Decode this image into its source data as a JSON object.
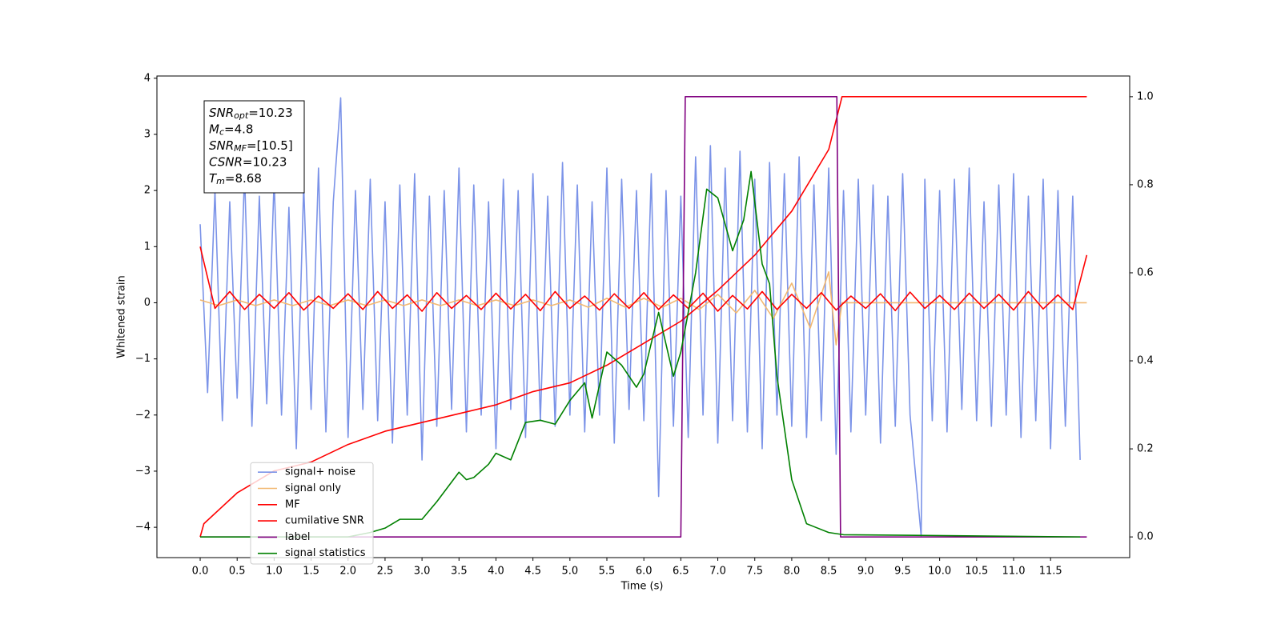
{
  "chart_data": {
    "type": "line",
    "xlabel": "Time (s)",
    "ylabel": "Whitened strain",
    "xlim": [
      -0.585,
      12.57
    ],
    "ylim": [
      -4.54,
      4.04
    ],
    "y2lim": [
      -0.047,
      1.047
    ],
    "xticks": [
      {
        "value": 0,
        "label": "0.0"
      },
      0.5,
      {
        "value": 1,
        "label": "1.0"
      },
      1.5,
      {
        "value": 2,
        "label": "2.0"
      },
      2.5,
      {
        "value": 3,
        "label": "3.0"
      },
      3.5,
      {
        "value": 4,
        "label": "4.0"
      },
      4.5,
      {
        "value": 5,
        "label": "5.0"
      },
      5.5,
      {
        "value": 6,
        "label": "6.0"
      },
      6.5,
      {
        "value": 7,
        "label": "7.0"
      },
      7.5,
      {
        "value": 8,
        "label": "8.0"
      },
      8.5,
      {
        "value": 9,
        "label": "9.0"
      },
      9.5,
      {
        "value": 10,
        "label": "10.0"
      },
      10.5,
      {
        "value": 11,
        "label": "11.0"
      },
      11.5
    ],
    "yticks": [
      {
        "value": -4,
        "label": "−4"
      },
      {
        "value": -3,
        "label": "−3"
      },
      {
        "value": -2,
        "label": "−2"
      },
      {
        "value": -1,
        "label": "−1"
      },
      0,
      1,
      2,
      3,
      4
    ],
    "y2ticks": [
      {
        "value": 0,
        "label": "0.0"
      },
      0.2,
      0.4,
      0.6,
      0.8,
      {
        "value": 1,
        "label": "1.0"
      }
    ],
    "legend": "lower left",
    "annotation": [
      [
        "SNR",
        "opt",
        "=10.23"
      ],
      [
        "M",
        "c",
        "=4.8"
      ],
      [
        "SNR",
        "MF",
        "=[10.5]"
      ],
      [
        "CSNR",
        "=10.23"
      ],
      [
        "T",
        "m",
        "=8.68"
      ]
    ],
    "series": [
      {
        "name": "signal+ noise",
        "color": "#7b93e8",
        "axis": "y",
        "x": [
          0,
          0.1,
          0.2,
          0.3,
          0.4,
          0.5,
          0.6,
          0.7,
          0.8,
          0.9,
          1,
          1.1,
          1.2,
          1.3,
          1.4,
          1.5,
          1.6,
          1.7,
          1.8,
          1.9,
          2,
          2.1,
          2.2,
          2.3,
          2.4,
          2.5,
          2.6,
          2.7,
          2.8,
          2.9,
          3,
          3.1,
          3.2,
          3.3,
          3.4,
          3.5,
          3.6,
          3.7,
          3.8,
          3.9,
          4,
          4.1,
          4.2,
          4.3,
          4.4,
          4.5,
          4.6,
          4.7,
          4.8,
          4.9,
          5,
          5.1,
          5.2,
          5.3,
          5.4,
          5.5,
          5.6,
          5.7,
          5.8,
          5.9,
          6,
          6.1,
          6.2,
          6.3,
          6.4,
          6.5,
          6.6,
          6.7,
          6.8,
          6.9,
          7,
          7.1,
          7.2,
          7.3,
          7.4,
          7.5,
          7.6,
          7.7,
          7.8,
          7.9,
          8,
          8.1,
          8.2,
          8.3,
          8.4,
          8.5,
          8.6,
          8.7,
          8.8,
          8.9,
          9,
          9.1,
          9.2,
          9.3,
          9.4,
          9.5,
          9.6,
          9.75,
          9.8,
          9.9,
          10,
          10.1,
          10.2,
          10.3,
          10.4,
          10.5,
          10.6,
          10.7,
          10.8,
          10.9,
          11,
          11.1,
          11.2,
          11.3,
          11.4,
          11.5,
          11.6,
          11.7,
          11.8,
          11.9
        ],
        "values": [
          1.4,
          -1.6,
          2.0,
          -2.1,
          1.8,
          -1.7,
          2.3,
          -2.2,
          1.9,
          -1.8,
          2.2,
          -2.0,
          1.7,
          -2.6,
          2.1,
          -1.9,
          2.4,
          -2.3,
          1.8,
          3.65,
          -2.4,
          2.0,
          -1.9,
          2.2,
          -2.1,
          1.8,
          -2.5,
          2.1,
          -2.0,
          2.3,
          -2.8,
          1.9,
          -2.2,
          2.0,
          -1.9,
          2.4,
          -2.3,
          2.1,
          -2.0,
          1.8,
          -2.6,
          2.2,
          -1.9,
          2.0,
          -2.4,
          2.3,
          -2.1,
          1.9,
          -2.2,
          2.5,
          -2.0,
          2.1,
          -2.3,
          1.8,
          -2.0,
          2.4,
          -2.5,
          2.2,
          -1.9,
          2.0,
          -2.1,
          2.3,
          -3.45,
          2.0,
          -2.2,
          1.9,
          -2.4,
          2.6,
          -2.0,
          2.8,
          -2.5,
          2.4,
          -2.1,
          2.7,
          -2.3,
          2.2,
          -2.6,
          2.5,
          -2.0,
          2.3,
          -2.2,
          2.6,
          -2.4,
          2.1,
          -2.1,
          2.4,
          -2.7,
          2.0,
          -2.3,
          2.2,
          -2.0,
          2.1,
          -2.5,
          1.9,
          -2.2,
          2.3,
          -2.0,
          -4.15,
          2.2,
          -2.1,
          2.0,
          -2.3,
          2.2,
          -1.9,
          2.4,
          -2.1,
          1.8,
          -2.2,
          2.1,
          -2.0,
          2.3,
          -2.4,
          1.9,
          -2.1,
          2.2,
          -2.6,
          2.0,
          -2.2,
          1.9,
          -2.8
        ]
      },
      {
        "name": "signal only",
        "color": "#f2b872",
        "axis": "y",
        "x": [
          0,
          0.25,
          0.5,
          0.75,
          1,
          1.25,
          1.5,
          1.75,
          2,
          2.25,
          2.5,
          2.75,
          3,
          3.25,
          3.5,
          3.75,
          4,
          4.25,
          4.5,
          4.75,
          5,
          5.25,
          5.5,
          5.75,
          6,
          6.25,
          6.5,
          6.75,
          7,
          7.25,
          7.5,
          7.75,
          8,
          8.25,
          8.5,
          8.6,
          8.68,
          11.99
        ],
        "values": [
          0.05,
          -0.05,
          0.05,
          -0.05,
          0.05,
          -0.05,
          0.05,
          -0.05,
          0.05,
          -0.05,
          0.05,
          -0.05,
          0.05,
          -0.05,
          0.05,
          -0.05,
          0.05,
          -0.05,
          0.05,
          -0.05,
          0.05,
          -0.08,
          0.08,
          -0.08,
          0.08,
          -0.08,
          0.08,
          -0.12,
          0.15,
          -0.18,
          0.22,
          -0.28,
          0.35,
          -0.45,
          0.55,
          -0.75,
          0,
          0
        ]
      },
      {
        "name": "MF",
        "color": "#ff0000",
        "axis": "y",
        "x": [
          0,
          0.2,
          0.4,
          0.6,
          0.8,
          1,
          1.2,
          1.4,
          1.6,
          1.8,
          2,
          2.2,
          2.4,
          2.6,
          2.8,
          3,
          3.2,
          3.4,
          3.6,
          3.8,
          4,
          4.2,
          4.4,
          4.6,
          4.8,
          5,
          5.2,
          5.4,
          5.6,
          5.8,
          6,
          6.2,
          6.4,
          6.6,
          6.8,
          7,
          7.2,
          7.4,
          7.6,
          7.8,
          8,
          8.2,
          8.4,
          8.6,
          8.8,
          9,
          9.2,
          9.4,
          9.6,
          9.8,
          10,
          10.2,
          10.4,
          10.6,
          10.8,
          11,
          11.2,
          11.4,
          11.6,
          11.8,
          11.99
        ],
        "values": [
          1.0,
          -0.1,
          0.2,
          -0.12,
          0.15,
          -0.1,
          0.18,
          -0.13,
          0.12,
          -0.1,
          0.16,
          -0.12,
          0.2,
          -0.1,
          0.14,
          -0.15,
          0.18,
          -0.1,
          0.13,
          -0.12,
          0.17,
          -0.11,
          0.15,
          -0.14,
          0.2,
          -0.1,
          0.12,
          -0.13,
          0.16,
          -0.1,
          0.18,
          -0.12,
          0.14,
          -0.1,
          0.17,
          -0.15,
          0.13,
          -0.11,
          0.2,
          -0.12,
          0.15,
          -0.1,
          0.18,
          -0.13,
          0.12,
          -0.1,
          0.16,
          -0.14,
          0.19,
          -0.1,
          0.13,
          -0.12,
          0.17,
          -0.1,
          0.15,
          -0.13,
          0.2,
          -0.11,
          0.14,
          -0.12,
          0.85
        ]
      },
      {
        "name": "cumilative SNR",
        "color": "#ff0000",
        "axis": "y2",
        "x": [
          0,
          0.05,
          0.5,
          1,
          1.5,
          2,
          2.5,
          3,
          3.5,
          4,
          4.5,
          5,
          5.5,
          6,
          6.5,
          7,
          7.5,
          8,
          8.5,
          8.68,
          11.99
        ],
        "values": [
          0,
          0.03,
          0.1,
          0.15,
          0.17,
          0.21,
          0.24,
          0.26,
          0.28,
          0.3,
          0.33,
          0.35,
          0.39,
          0.44,
          0.49,
          0.56,
          0.64,
          0.74,
          0.88,
          1,
          1
        ]
      },
      {
        "name": "label",
        "color": "#800080",
        "axis": "y2",
        "x": [
          0,
          6.5,
          6.56,
          8.61,
          8.66,
          11.99
        ],
        "values": [
          0,
          0,
          1,
          1,
          0,
          0
        ]
      },
      {
        "name": "signal statistics",
        "color": "#008000",
        "axis": "y2",
        "x": [
          0,
          2,
          2.3,
          2.5,
          2.7,
          3,
          3.2,
          3.5,
          3.6,
          3.7,
          3.9,
          4,
          4.2,
          4.4,
          4.6,
          4.8,
          5,
          5.2,
          5.3,
          5.5,
          5.7,
          5.9,
          6,
          6.2,
          6.4,
          6.5,
          6.7,
          6.85,
          7,
          7.2,
          7.35,
          7.45,
          7.6,
          7.7,
          7.8,
          8,
          8.2,
          8.5,
          8.7,
          11.9
        ],
        "values": [
          0,
          0,
          0.01,
          0.02,
          0.04,
          0.04,
          0.08,
          0.147,
          0.13,
          0.135,
          0.165,
          0.19,
          0.175,
          0.26,
          0.265,
          0.256,
          0.31,
          0.35,
          0.27,
          0.42,
          0.39,
          0.34,
          0.37,
          0.51,
          0.365,
          0.42,
          0.6,
          0.79,
          0.77,
          0.65,
          0.72,
          0.83,
          0.62,
          0.575,
          0.365,
          0.13,
          0.03,
          0.01,
          0.005,
          0
        ]
      }
    ]
  }
}
